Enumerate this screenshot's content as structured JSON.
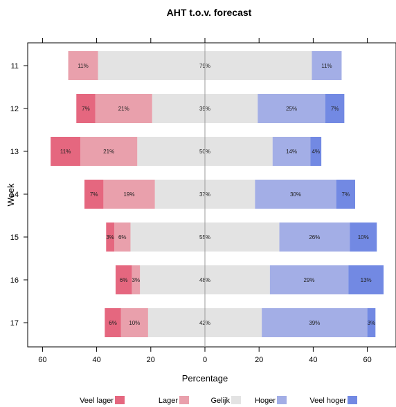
{
  "chart_data": {
    "type": "bar",
    "orientation": "horizontal-diverging-stacked",
    "title": "AHT t.o.v. forecast",
    "xlabel": "Percentage",
    "ylabel": "Week",
    "xlim": [
      -60,
      60
    ],
    "xticks": [
      -60,
      -40,
      -20,
      0,
      20,
      40,
      60
    ],
    "xtick_labels": [
      "60",
      "40",
      "20",
      "0",
      "20",
      "40",
      "60"
    ],
    "categories": [
      "11",
      "12",
      "13",
      "14",
      "15",
      "16",
      "17"
    ],
    "series": [
      {
        "name": "Veel lager",
        "color": "#e5677f",
        "side": "negative",
        "values": [
          0,
          7,
          11,
          7,
          3,
          6,
          6
        ],
        "labels": [
          "",
          "7%",
          "11%",
          "7%",
          "3%",
          "6%",
          "6%"
        ]
      },
      {
        "name": "Lager",
        "color": "#e9a0ac",
        "side": "negative",
        "values": [
          11,
          21,
          21,
          19,
          6,
          3,
          10
        ],
        "labels": [
          "11%",
          "21%",
          "21%",
          "19%",
          "6%",
          "3%",
          "10%"
        ]
      },
      {
        "name": "Gelijk",
        "color": "#e3e3e3",
        "side": "center",
        "values": [
          79,
          39,
          50,
          37,
          55,
          48,
          42
        ],
        "labels": [
          "79%",
          "39%",
          "50%",
          "37%",
          "55%",
          "48%",
          "42%"
        ]
      },
      {
        "name": "Hoger",
        "color": "#a3aee6",
        "side": "positive",
        "values": [
          11,
          25,
          14,
          30,
          26,
          29,
          39
        ],
        "labels": [
          "11%",
          "25%",
          "14%",
          "30%",
          "26%",
          "29%",
          "39%"
        ]
      },
      {
        "name": "Veel hoger",
        "color": "#7289e3",
        "side": "positive",
        "values": [
          0,
          7,
          4,
          7,
          10,
          13,
          3
        ],
        "labels": [
          "",
          "7%",
          "4%",
          "7%",
          "10%",
          "13%",
          "3%"
        ]
      }
    ],
    "legend_position": "bottom",
    "legend_labels": [
      "Veel lager",
      "Lager",
      "Gelijk",
      "Hoger",
      "Veel hoger"
    ],
    "grid": false
  }
}
